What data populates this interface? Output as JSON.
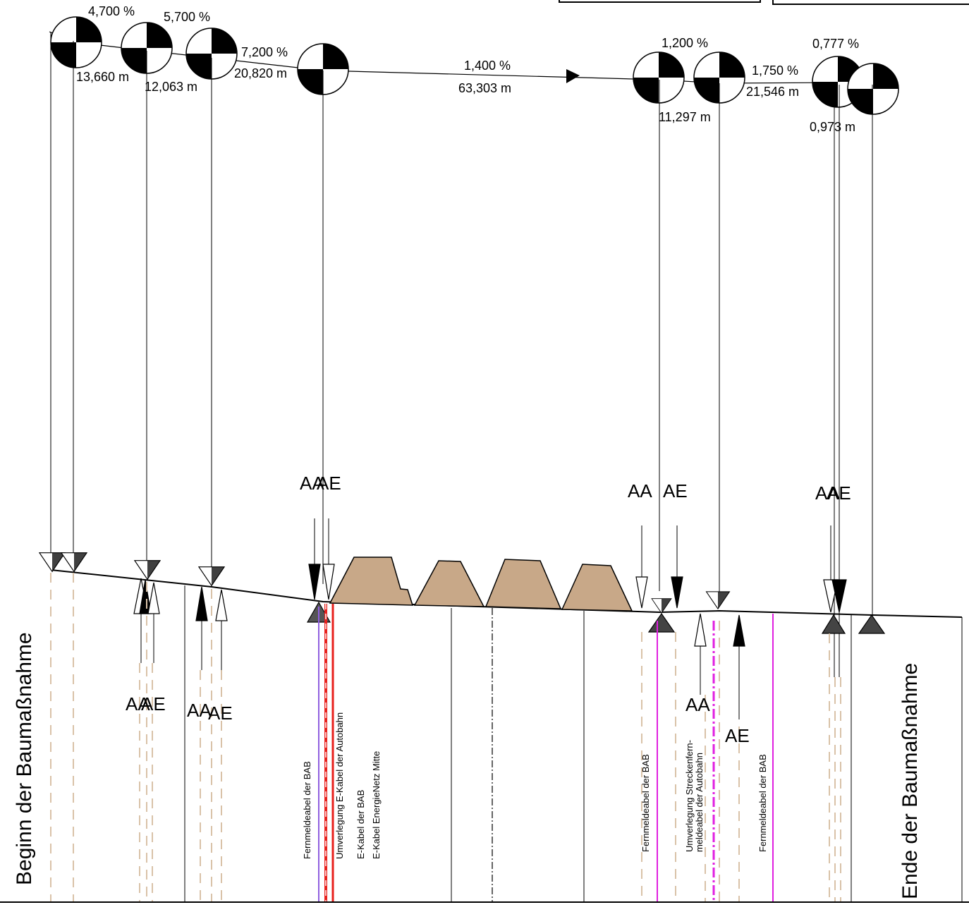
{
  "slopes": [
    {
      "grade": "4,700 %",
      "length": "13,660 m"
    },
    {
      "grade": "5,700 %",
      "length": "12,063 m"
    },
    {
      "grade": "7,200 %",
      "length": "20,820 m"
    },
    {
      "grade": "1,400 %",
      "length": "63,303 m"
    },
    {
      "grade": "1,200 %",
      "length": "11,297 m"
    },
    {
      "grade": "1,750 %",
      "length": "21,546 m"
    },
    {
      "grade": "0,777 %",
      "length": "0,973 m"
    }
  ],
  "markers": {
    "aa": "AA",
    "ae": "AE"
  },
  "vertical_titles": {
    "start": "Beginn der Baumaßnahme",
    "end": "Ende der Baumaßnahme"
  },
  "cable_labels": {
    "c1": "Fernmeldeabel der BAB",
    "c2": "Umverlegung E-Kabel der Autobahn",
    "c3": "E-Kabel der BAB",
    "c4": "E-Kabel EnergieNetz Mitte",
    "c5": "Fernmeldeabel der BAB",
    "c6a": "Umverlegung Streckenfern-",
    "c6b": "meldeabel der Autobahn",
    "c7": "Fernmeldeabel der BAB"
  },
  "colors": {
    "line": "#000000",
    "mound": "#c8a888",
    "dashed_tan": "#d9c2a8",
    "red_cable": "#e8201c",
    "magenta_cable": "#e020e0"
  }
}
